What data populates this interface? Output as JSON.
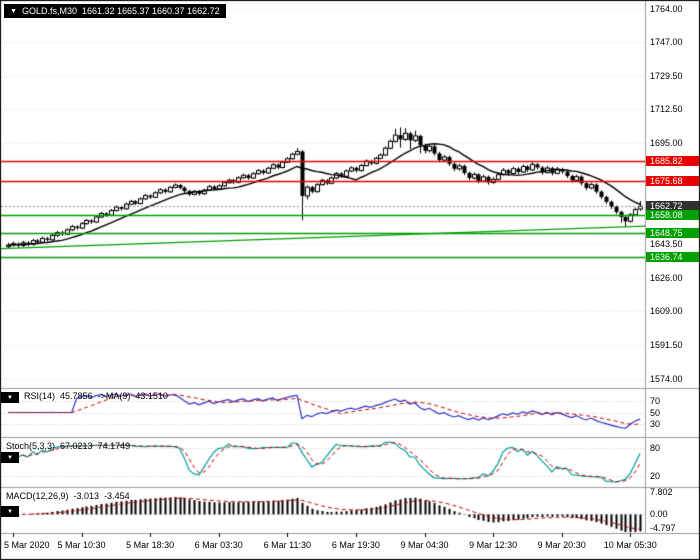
{
  "header": {
    "symbol": "GOLD.fs,M30",
    "ohlc": "1661.32 1665.37 1660.37 1662.72"
  },
  "icons": {
    "collapse": "▼"
  },
  "panes": {
    "rsi": {
      "name": "RSI(14)",
      "value": "45.7856",
      "ma_name": "->MA(9)",
      "ma_value": "43.1510",
      "levels": [
        "70",
        "50",
        "30"
      ],
      "line_color": "#2a35c8",
      "signal_color": "#cc0000"
    },
    "stoch": {
      "name": "Stoch(5,3,3)",
      "value": "67.0213",
      "signal_value": "74.1749",
      "levels": [
        "80",
        "20"
      ],
      "line_color": "#00a0a0",
      "signal_color": "#cc0000"
    },
    "macd": {
      "name": "MACD(12,26,9)",
      "value": "-3.013",
      "signal_value": "-3.454",
      "axis_labels": [
        "7.802",
        "0.00",
        "-4.797"
      ],
      "hist_color": "#000000",
      "signal_color": "#cc0000"
    }
  },
  "price_axis": {
    "ticks": [
      "1764.00",
      "1747.00",
      "1729.50",
      "1712.50",
      "1695.00",
      "1643.50",
      "1626.00",
      "1609.00",
      "1591.50",
      "1574.00"
    ]
  },
  "levels": [
    {
      "price": 1685.82,
      "label": "1685.82",
      "color": "#e80000",
      "style": "solid",
      "role": "resistance-badge"
    },
    {
      "price": 1675.68,
      "label": "1675.68",
      "color": "#e80000",
      "style": "solid",
      "role": "resistance-badge"
    },
    {
      "price": 1662.72,
      "label": "1662.72",
      "color": "#303030",
      "style": "dotted",
      "role": "current-price-badge"
    },
    {
      "price": 1658.08,
      "label": "1658.08",
      "color": "#00a000",
      "style": "solid",
      "role": "support-badge"
    },
    {
      "price": 1648.75,
      "label": "1648.75",
      "color": "#00a000",
      "style": "solid",
      "role": "support-badge"
    },
    {
      "price": 1636.74,
      "label": "1636.74",
      "color": "#00a000",
      "style": "solid",
      "role": "support-badge"
    }
  ],
  "trendline": {
    "p1": 1641.0,
    "p2": 1652.5,
    "color": "#00a000"
  },
  "time_axis": {
    "labels": [
      {
        "text": "5 Mar 2020",
        "bar": 1
      },
      {
        "text": "5 Mar 10:30",
        "bar": 15
      },
      {
        "text": "5 Mar 18:30",
        "bar": 29
      },
      {
        "text": "6 Mar 03:30",
        "bar": 43
      },
      {
        "text": "6 Mar 11:30",
        "bar": 57
      },
      {
        "text": "6 Mar 19:30",
        "bar": 71
      },
      {
        "text": "9 Mar 04:30",
        "bar": 85
      },
      {
        "text": "9 Mar 12:30",
        "bar": 99
      },
      {
        "text": "9 Mar 20:30",
        "bar": 113
      },
      {
        "text": "10 Mar 05:30",
        "bar": 127
      }
    ]
  },
  "chart_data": {
    "type": "candlestick",
    "title": "GOLD.fs,M30",
    "symbol": "GOLD.fs",
    "timeframe": "M30",
    "ylim": [
      1570,
      1768
    ],
    "grid": true,
    "indicators": [
      {
        "type": "SMA",
        "period": 12,
        "applied": "close",
        "color": "#000000",
        "pane": "main"
      },
      {
        "type": "RSI",
        "period": 14,
        "ma_period": 9,
        "pane": "rsi",
        "displayed": [
          45.7856,
          43.151
        ]
      },
      {
        "type": "Stochastic",
        "k": 5,
        "d": 3,
        "slowing": 3,
        "pane": "stoch",
        "displayed": [
          67.0213,
          74.1749
        ]
      },
      {
        "type": "MACD",
        "fast": 12,
        "slow": 26,
        "signal": 9,
        "pane": "macd",
        "displayed": [
          -3.013,
          -3.454
        ]
      }
    ],
    "candles": [
      [
        1642.0,
        1644.0,
        1640.8,
        1642.8
      ],
      [
        1642.8,
        1644.6,
        1642.0,
        1643.5
      ],
      [
        1643.5,
        1644.2,
        1641.5,
        1642.6
      ],
      [
        1642.6,
        1645.0,
        1641.9,
        1644.0
      ],
      [
        1644.0,
        1644.8,
        1642.1,
        1643.2
      ],
      [
        1643.2,
        1646.0,
        1642.5,
        1645.1
      ],
      [
        1645.1,
        1645.9,
        1643.4,
        1644.3
      ],
      [
        1644.3,
        1647.1,
        1643.8,
        1646.2
      ],
      [
        1646.2,
        1647.0,
        1644.6,
        1645.5
      ],
      [
        1645.5,
        1648.6,
        1645.0,
        1647.8
      ],
      [
        1647.8,
        1650.0,
        1647.0,
        1649.2
      ],
      [
        1649.2,
        1650.1,
        1647.5,
        1648.4
      ],
      [
        1648.4,
        1651.4,
        1647.9,
        1650.6
      ],
      [
        1650.6,
        1653.2,
        1650.0,
        1652.3
      ],
      [
        1652.3,
        1653.0,
        1650.6,
        1651.5
      ],
      [
        1651.5,
        1654.6,
        1651.0,
        1653.8
      ],
      [
        1653.8,
        1656.2,
        1653.2,
        1655.4
      ],
      [
        1655.4,
        1656.1,
        1653.7,
        1654.6
      ],
      [
        1654.6,
        1658.0,
        1654.1,
        1657.2
      ],
      [
        1657.2,
        1659.8,
        1656.6,
        1659.0
      ],
      [
        1659.0,
        1659.7,
        1657.2,
        1658.1
      ],
      [
        1658.1,
        1661.3,
        1657.6,
        1660.5
      ],
      [
        1660.5,
        1663.1,
        1660.0,
        1662.3
      ],
      [
        1662.3,
        1663.0,
        1660.5,
        1661.4
      ],
      [
        1661.4,
        1664.6,
        1660.9,
        1663.8
      ],
      [
        1663.8,
        1666.0,
        1663.2,
        1665.2
      ],
      [
        1665.2,
        1665.9,
        1663.3,
        1664.1
      ],
      [
        1664.1,
        1667.3,
        1663.6,
        1666.5
      ],
      [
        1666.5,
        1669.0,
        1666.0,
        1668.2
      ],
      [
        1668.2,
        1668.9,
        1666.4,
        1667.3
      ],
      [
        1667.3,
        1670.4,
        1666.8,
        1669.6
      ],
      [
        1669.6,
        1672.0,
        1669.1,
        1671.2
      ],
      [
        1671.2,
        1671.9,
        1669.2,
        1670.1
      ],
      [
        1670.1,
        1673.2,
        1669.6,
        1672.4
      ],
      [
        1672.4,
        1674.4,
        1671.9,
        1673.6
      ],
      [
        1673.6,
        1674.2,
        1671.3,
        1672.2
      ],
      [
        1672.2,
        1672.9,
        1669.6,
        1670.5
      ],
      [
        1670.5,
        1671.2,
        1667.9,
        1668.8
      ],
      [
        1668.8,
        1671.1,
        1668.2,
        1670.3
      ],
      [
        1670.3,
        1671.0,
        1668.2,
        1669.1
      ],
      [
        1669.1,
        1671.8,
        1668.6,
        1671.0
      ],
      [
        1671.0,
        1673.6,
        1670.5,
        1672.8
      ],
      [
        1672.8,
        1673.5,
        1670.7,
        1671.6
      ],
      [
        1671.6,
        1674.0,
        1671.1,
        1673.2
      ],
      [
        1673.2,
        1675.6,
        1672.7,
        1674.8
      ],
      [
        1674.8,
        1676.9,
        1674.3,
        1676.1
      ],
      [
        1676.1,
        1676.8,
        1674.1,
        1675.0
      ],
      [
        1675.0,
        1678.1,
        1674.5,
        1677.3
      ],
      [
        1677.3,
        1679.4,
        1676.8,
        1678.6
      ],
      [
        1678.6,
        1679.3,
        1676.3,
        1677.2
      ],
      [
        1677.2,
        1680.2,
        1676.7,
        1679.4
      ],
      [
        1679.4,
        1681.8,
        1678.9,
        1681.0
      ],
      [
        1681.0,
        1681.7,
        1678.9,
        1679.8
      ],
      [
        1679.8,
        1683.0,
        1679.3,
        1682.2
      ],
      [
        1682.2,
        1684.8,
        1681.7,
        1684.0
      ],
      [
        1684.0,
        1684.7,
        1681.7,
        1682.6
      ],
      [
        1682.6,
        1686.1,
        1682.1,
        1685.3
      ],
      [
        1685.3,
        1687.9,
        1684.8,
        1687.1
      ],
      [
        1687.1,
        1690.2,
        1686.6,
        1689.4
      ],
      [
        1689.4,
        1692.5,
        1688.9,
        1690.8
      ],
      [
        1690.8,
        1691.5,
        1655.5,
        1668.0
      ],
      [
        1668.0,
        1673.4,
        1666.2,
        1672.5
      ],
      [
        1672.5,
        1673.2,
        1669.3,
        1670.2
      ],
      [
        1670.2,
        1674.6,
        1669.7,
        1673.8
      ],
      [
        1673.8,
        1676.8,
        1673.3,
        1676.0
      ],
      [
        1676.0,
        1676.7,
        1673.6,
        1674.5
      ],
      [
        1674.5,
        1678.0,
        1674.0,
        1677.2
      ],
      [
        1677.2,
        1680.3,
        1676.7,
        1679.5
      ],
      [
        1679.5,
        1680.2,
        1677.2,
        1678.1
      ],
      [
        1678.1,
        1681.6,
        1677.6,
        1680.8
      ],
      [
        1680.8,
        1683.2,
        1680.3,
        1682.4
      ],
      [
        1682.4,
        1683.1,
        1680.1,
        1681.0
      ],
      [
        1681.0,
        1684.4,
        1680.5,
        1683.6
      ],
      [
        1683.6,
        1686.7,
        1683.1,
        1685.9
      ],
      [
        1685.9,
        1686.6,
        1683.8,
        1684.7
      ],
      [
        1684.7,
        1688.1,
        1684.2,
        1687.3
      ],
      [
        1687.3,
        1689.8,
        1686.8,
        1689.0
      ],
      [
        1689.0,
        1693.4,
        1688.5,
        1692.5
      ],
      [
        1692.5,
        1697.0,
        1691.8,
        1696.0
      ],
      [
        1696.0,
        1702.4,
        1695.4,
        1699.2
      ],
      [
        1699.2,
        1703.2,
        1692.8,
        1697.0
      ],
      [
        1697.0,
        1702.8,
        1696.2,
        1700.1
      ],
      [
        1700.1,
        1700.9,
        1691.9,
        1696.5
      ],
      [
        1696.5,
        1701.5,
        1695.6,
        1698.8
      ],
      [
        1698.8,
        1699.5,
        1689.9,
        1694.0
      ],
      [
        1694.0,
        1694.8,
        1689.8,
        1691.2
      ],
      [
        1691.2,
        1694.6,
        1690.3,
        1693.5
      ],
      [
        1693.5,
        1694.2,
        1688.7,
        1689.8
      ],
      [
        1689.8,
        1690.6,
        1685.2,
        1686.4
      ],
      [
        1686.4,
        1689.1,
        1685.6,
        1688.0
      ],
      [
        1688.0,
        1688.7,
        1683.4,
        1684.5
      ],
      [
        1684.5,
        1685.2,
        1680.8,
        1681.9
      ],
      [
        1681.9,
        1684.5,
        1681.0,
        1683.4
      ],
      [
        1683.4,
        1684.1,
        1678.7,
        1679.8
      ],
      [
        1679.8,
        1680.5,
        1676.1,
        1677.2
      ],
      [
        1677.2,
        1680.1,
        1676.4,
        1679.0
      ],
      [
        1679.0,
        1679.7,
        1674.5,
        1675.6
      ],
      [
        1675.6,
        1678.9,
        1675.0,
        1677.8
      ],
      [
        1677.8,
        1678.5,
        1673.8,
        1674.9
      ],
      [
        1674.9,
        1677.6,
        1674.2,
        1676.5
      ],
      [
        1676.5,
        1680.0,
        1676.0,
        1678.9
      ],
      [
        1678.9,
        1682.3,
        1678.4,
        1681.2
      ],
      [
        1681.2,
        1681.9,
        1678.4,
        1679.5
      ],
      [
        1679.5,
        1683.1,
        1679.0,
        1682.0
      ],
      [
        1682.0,
        1682.7,
        1679.2,
        1680.3
      ],
      [
        1680.3,
        1684.2,
        1679.8,
        1683.1
      ],
      [
        1683.1,
        1683.8,
        1680.3,
        1681.4
      ],
      [
        1681.4,
        1685.3,
        1680.9,
        1684.2
      ],
      [
        1684.2,
        1684.9,
        1681.5,
        1682.6
      ],
      [
        1682.6,
        1683.3,
        1678.9,
        1680.0
      ],
      [
        1680.0,
        1683.4,
        1679.5,
        1682.3
      ],
      [
        1682.3,
        1683.0,
        1678.5,
        1679.6
      ],
      [
        1679.6,
        1682.9,
        1679.1,
        1681.8
      ],
      [
        1681.8,
        1682.5,
        1679.4,
        1680.5
      ],
      [
        1680.5,
        1681.2,
        1677.1,
        1678.2
      ],
      [
        1678.2,
        1678.9,
        1674.9,
        1676.0
      ],
      [
        1676.0,
        1678.9,
        1675.3,
        1677.9
      ],
      [
        1677.9,
        1678.6,
        1673.4,
        1674.5
      ],
      [
        1674.5,
        1675.2,
        1671.0,
        1672.1
      ],
      [
        1672.1,
        1674.8,
        1671.4,
        1673.8
      ],
      [
        1673.8,
        1674.5,
        1669.1,
        1670.2
      ],
      [
        1670.2,
        1670.9,
        1666.4,
        1667.5
      ],
      [
        1667.5,
        1668.2,
        1663.9,
        1665.0
      ],
      [
        1665.0,
        1665.7,
        1661.3,
        1662.4
      ],
      [
        1662.4,
        1663.1,
        1658.7,
        1659.8
      ],
      [
        1659.8,
        1660.5,
        1654.3,
        1657.2
      ],
      [
        1657.2,
        1658.0,
        1652.3,
        1655.0
      ],
      [
        1655.0,
        1659.3,
        1654.4,
        1658.3
      ],
      [
        1658.3,
        1662.0,
        1657.6,
        1661.0
      ],
      [
        1661.32,
        1665.37,
        1660.37,
        1662.72
      ]
    ]
  }
}
